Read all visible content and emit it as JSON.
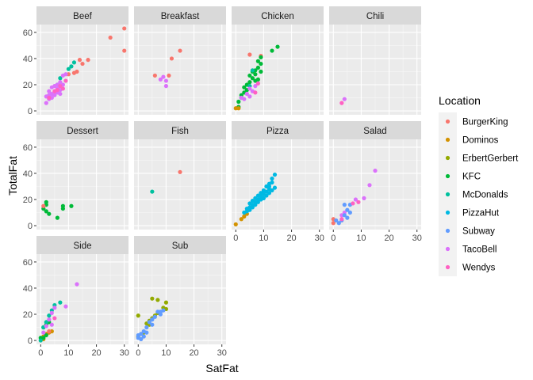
{
  "chart_data": {
    "type": "scatter",
    "facet_by": "Category",
    "xlabel": "SatFat",
    "ylabel": "TotalFat",
    "xlim": [
      -1.5,
      31.5
    ],
    "ylim": [
      -3,
      66
    ],
    "x_ticks": [
      0,
      10,
      20,
      30
    ],
    "y_ticks": [
      0,
      20,
      40,
      60
    ],
    "grid": true,
    "legend": {
      "title": "Location",
      "position": "right",
      "entries": [
        {
          "name": "BurgerKing",
          "color": "#F8766D"
        },
        {
          "name": "Dominos",
          "color": "#D39200"
        },
        {
          "name": "ErbertGerbert",
          "color": "#93AA00"
        },
        {
          "name": "KFC",
          "color": "#00BA38"
        },
        {
          "name": "McDonalds",
          "color": "#00C19F"
        },
        {
          "name": "PizzaHut",
          "color": "#00B9E3"
        },
        {
          "name": "Subway",
          "color": "#619CFF"
        },
        {
          "name": "TacoBell",
          "color": "#DB72FB"
        },
        {
          "name": "Wendys",
          "color": "#FF61C3"
        }
      ]
    },
    "panels": [
      {
        "name": "Beef",
        "points": [
          [
            30,
            63,
            "BurgerKing"
          ],
          [
            25,
            56,
            "BurgerKing"
          ],
          [
            30,
            46,
            "BurgerKing"
          ],
          [
            17,
            39,
            "BurgerKing"
          ],
          [
            14,
            39,
            "BurgerKing"
          ],
          [
            15,
            36,
            "BurgerKing"
          ],
          [
            13,
            30,
            "BurgerKing"
          ],
          [
            10,
            28,
            "BurgerKing"
          ],
          [
            12,
            29,
            "BurgerKing"
          ],
          [
            12,
            37,
            "McDonalds"
          ],
          [
            11,
            34,
            "McDonalds"
          ],
          [
            10,
            32,
            "McDonalds"
          ],
          [
            7,
            25,
            "McDonalds"
          ],
          [
            6,
            20,
            "McDonalds"
          ],
          [
            9,
            28,
            "TacoBell"
          ],
          [
            8,
            27,
            "TacoBell"
          ],
          [
            7,
            22,
            "TacoBell"
          ],
          [
            6,
            20,
            "TacoBell"
          ],
          [
            5,
            19,
            "TacoBell"
          ],
          [
            5,
            15,
            "TacoBell"
          ],
          [
            4,
            18,
            "TacoBell"
          ],
          [
            4,
            13,
            "TacoBell"
          ],
          [
            3,
            12,
            "TacoBell"
          ],
          [
            3,
            9,
            "TacoBell"
          ],
          [
            2,
            6,
            "TacoBell"
          ],
          [
            4,
            10,
            "TacoBell"
          ],
          [
            5,
            12,
            "TacoBell"
          ],
          [
            6,
            14,
            "TacoBell"
          ],
          [
            7,
            16,
            "TacoBell"
          ],
          [
            8,
            20,
            "TacoBell"
          ],
          [
            3,
            15,
            "TacoBell"
          ],
          [
            2,
            11,
            "TacoBell"
          ],
          [
            6,
            17,
            "TacoBell"
          ],
          [
            7,
            13,
            "TacoBell"
          ],
          [
            6,
            16,
            "Wendys"
          ],
          [
            7,
            19,
            "Wendys"
          ],
          [
            5,
            15,
            "Wendys"
          ],
          [
            8,
            17,
            "Wendys"
          ],
          [
            9,
            23,
            "Wendys"
          ],
          [
            3,
            10,
            "Wendys"
          ]
        ]
      },
      {
        "name": "Breakfast",
        "points": [
          [
            15,
            46,
            "BurgerKing"
          ],
          [
            12,
            40,
            "BurgerKing"
          ],
          [
            6,
            27,
            "BurgerKing"
          ],
          [
            11,
            27,
            "BurgerKing"
          ],
          [
            9,
            26,
            "TacoBell"
          ],
          [
            8,
            24,
            "TacoBell"
          ],
          [
            10,
            23,
            "TacoBell"
          ],
          [
            10,
            19,
            "TacoBell"
          ]
        ]
      },
      {
        "name": "Chicken",
        "points": [
          [
            5,
            43,
            "BurgerKing"
          ],
          [
            9,
            42,
            "BurgerKing"
          ],
          [
            15,
            49,
            "KFC"
          ],
          [
            13,
            46,
            "KFC"
          ],
          [
            9,
            41,
            "KFC"
          ],
          [
            8,
            38,
            "KFC"
          ],
          [
            9,
            36,
            "KFC"
          ],
          [
            8,
            33,
            "KFC"
          ],
          [
            6,
            30,
            "KFC"
          ],
          [
            7,
            28,
            "KFC"
          ],
          [
            5,
            27,
            "KFC"
          ],
          [
            6,
            25,
            "KFC"
          ],
          [
            7,
            23,
            "KFC"
          ],
          [
            5,
            22,
            "KFC"
          ],
          [
            4,
            20,
            "KFC"
          ],
          [
            3,
            18,
            "KFC"
          ],
          [
            4,
            16,
            "KFC"
          ],
          [
            2,
            12,
            "KFC"
          ],
          [
            3,
            14,
            "KFC"
          ],
          [
            2,
            10,
            "KFC"
          ],
          [
            1,
            7,
            "KFC"
          ],
          [
            1,
            3,
            "KFC"
          ],
          [
            8,
            24,
            "KFC"
          ],
          [
            7,
            31,
            "KFC"
          ],
          [
            9,
            30,
            "KFC"
          ],
          [
            0,
            2,
            "Dominos"
          ],
          [
            1,
            2,
            "Dominos"
          ],
          [
            6,
            31,
            "McDonalds"
          ],
          [
            5,
            19,
            "McDonalds"
          ],
          [
            7,
            19,
            "TacoBell"
          ],
          [
            5,
            17,
            "TacoBell"
          ],
          [
            6,
            15,
            "TacoBell"
          ],
          [
            4,
            13,
            "TacoBell"
          ],
          [
            5,
            11,
            "TacoBell"
          ],
          [
            3,
            9,
            "TacoBell"
          ],
          [
            2,
            10,
            "TacoBell"
          ],
          [
            8,
            21,
            "Wendys"
          ],
          [
            7,
            14,
            "Wendys"
          ]
        ]
      },
      {
        "name": "Chili",
        "points": [
          [
            4,
            9,
            "TacoBell"
          ],
          [
            3,
            6,
            "Wendys"
          ]
        ]
      },
      {
        "name": "Dessert",
        "points": [
          [
            2,
            16,
            "KFC"
          ],
          [
            2,
            18,
            "KFC"
          ],
          [
            1,
            13,
            "KFC"
          ],
          [
            2,
            11,
            "KFC"
          ],
          [
            6,
            6,
            "KFC"
          ],
          [
            8,
            13,
            "KFC"
          ],
          [
            8,
            15,
            "KFC"
          ],
          [
            11,
            15,
            "KFC"
          ],
          [
            3,
            9,
            "KFC"
          ],
          [
            1,
            15,
            "BurgerKing"
          ]
        ]
      },
      {
        "name": "Fish",
        "points": [
          [
            15,
            41,
            "BurgerKing"
          ],
          [
            5,
            26,
            "McDonalds"
          ]
        ]
      },
      {
        "name": "Pizza",
        "points": [
          [
            0,
            1,
            "Dominos"
          ],
          [
            2,
            5,
            "Dominos"
          ],
          [
            3,
            7,
            "Dominos"
          ],
          [
            4,
            9,
            "Dominos"
          ],
          [
            14,
            39,
            "PizzaHut"
          ],
          [
            13,
            36,
            "PizzaHut"
          ],
          [
            12,
            32,
            "PizzaHut"
          ],
          [
            11,
            30,
            "PizzaHut"
          ],
          [
            12,
            28,
            "PizzaHut"
          ],
          [
            10,
            27,
            "PizzaHut"
          ],
          [
            11,
            26,
            "PizzaHut"
          ],
          [
            9,
            25,
            "PizzaHut"
          ],
          [
            10,
            24,
            "PizzaHut"
          ],
          [
            8,
            23,
            "PizzaHut"
          ],
          [
            9,
            22,
            "PizzaHut"
          ],
          [
            7,
            21,
            "PizzaHut"
          ],
          [
            8,
            20,
            "PizzaHut"
          ],
          [
            6,
            19,
            "PizzaHut"
          ],
          [
            7,
            18,
            "PizzaHut"
          ],
          [
            5,
            17,
            "PizzaHut"
          ],
          [
            6,
            16,
            "PizzaHut"
          ],
          [
            5,
            14,
            "PizzaHut"
          ],
          [
            4,
            13,
            "PizzaHut"
          ],
          [
            4,
            11,
            "PizzaHut"
          ],
          [
            3,
            10,
            "PizzaHut"
          ],
          [
            13,
            27,
            "PizzaHut"
          ],
          [
            12,
            25,
            "PizzaHut"
          ],
          [
            14,
            29,
            "PizzaHut"
          ],
          [
            11,
            23,
            "PizzaHut"
          ],
          [
            10,
            21,
            "PizzaHut"
          ],
          [
            9,
            20,
            "PizzaHut"
          ],
          [
            8,
            18,
            "PizzaHut"
          ],
          [
            7,
            16,
            "PizzaHut"
          ],
          [
            6,
            14,
            "PizzaHut"
          ],
          [
            5,
            12,
            "PizzaHut"
          ],
          [
            9,
            24,
            "PizzaHut"
          ],
          [
            10,
            26,
            "PizzaHut"
          ],
          [
            12,
            30,
            "PizzaHut"
          ],
          [
            13,
            33,
            "PizzaHut"
          ]
        ]
      },
      {
        "name": "Salad",
        "points": [
          [
            0,
            5,
            "BurgerKing"
          ],
          [
            0,
            2,
            "BurgerKing"
          ],
          [
            15,
            42,
            "TacoBell"
          ],
          [
            13,
            31,
            "TacoBell"
          ],
          [
            11,
            21,
            "TacoBell"
          ],
          [
            8,
            20,
            "TacoBell"
          ],
          [
            4,
            10,
            "TacoBell"
          ],
          [
            3,
            8,
            "TacoBell"
          ],
          [
            4,
            16,
            "Subway"
          ],
          [
            6,
            16,
            "Subway"
          ],
          [
            5,
            12,
            "Subway"
          ],
          [
            6,
            10,
            "Subway"
          ],
          [
            4,
            8,
            "Subway"
          ],
          [
            5,
            6,
            "Subway"
          ],
          [
            3,
            4,
            "Subway"
          ],
          [
            1,
            4,
            "Subway"
          ],
          [
            2,
            2,
            "Subway"
          ],
          [
            9,
            18,
            "Wendys"
          ],
          [
            7,
            17,
            "Wendys"
          ],
          [
            3,
            5,
            "Wendys"
          ]
        ]
      },
      {
        "name": "Side",
        "points": [
          [
            1,
            3,
            "Dominos"
          ],
          [
            2,
            5,
            "Dominos"
          ],
          [
            3,
            6,
            "Dominos"
          ],
          [
            4,
            7,
            "Dominos"
          ],
          [
            1,
            1,
            "Dominos"
          ],
          [
            1,
            10,
            "KFC"
          ],
          [
            2,
            12,
            "KFC"
          ],
          [
            3,
            14,
            "KFC"
          ],
          [
            0,
            2,
            "KFC"
          ],
          [
            1,
            2,
            "KFC"
          ],
          [
            2,
            4,
            "KFC"
          ],
          [
            7,
            29,
            "McDonalds"
          ],
          [
            5,
            27,
            "McDonalds"
          ],
          [
            4,
            23,
            "McDonalds"
          ],
          [
            3,
            19,
            "McDonalds"
          ],
          [
            2,
            14,
            "McDonalds"
          ],
          [
            1,
            10,
            "McDonalds"
          ],
          [
            0,
            0,
            "McDonalds"
          ],
          [
            13,
            43,
            "TacoBell"
          ],
          [
            9,
            26,
            "TacoBell"
          ],
          [
            5,
            25,
            "TacoBell"
          ],
          [
            4,
            21,
            "TacoBell"
          ],
          [
            3,
            16,
            "TacoBell"
          ],
          [
            2,
            11,
            "TacoBell"
          ],
          [
            1,
            6,
            "TacoBell"
          ],
          [
            4,
            12,
            "TacoBell"
          ],
          [
            3,
            7,
            "BurgerKing"
          ],
          [
            5,
            17,
            "Wendys"
          ]
        ]
      },
      {
        "name": "Sub",
        "points": [
          [
            10,
            29,
            "ErbertGerbert"
          ],
          [
            9,
            25,
            "ErbertGerbert"
          ],
          [
            10,
            24,
            "ErbertGerbert"
          ],
          [
            5,
            32,
            "ErbertGerbert"
          ],
          [
            6,
            19,
            "ErbertGerbert"
          ],
          [
            4,
            15,
            "ErbertGerbert"
          ],
          [
            5,
            17,
            "ErbertGerbert"
          ],
          [
            3,
            13,
            "ErbertGerbert"
          ],
          [
            7,
            21,
            "ErbertGerbert"
          ],
          [
            0,
            19,
            "ErbertGerbert"
          ],
          [
            2,
            6,
            "ErbertGerbert"
          ],
          [
            0,
            3,
            "ErbertGerbert"
          ],
          [
            4,
            12,
            "ErbertGerbert"
          ],
          [
            7,
            31,
            "ErbertGerbert"
          ],
          [
            8,
            22,
            "Subway"
          ],
          [
            7,
            22,
            "Subway"
          ],
          [
            6,
            18,
            "Subway"
          ],
          [
            5,
            16,
            "Subway"
          ],
          [
            4,
            14,
            "Subway"
          ],
          [
            3,
            10,
            "Subway"
          ],
          [
            2,
            7,
            "Subway"
          ],
          [
            1,
            5,
            "Subway"
          ],
          [
            0,
            4,
            "Subway"
          ],
          [
            0,
            2,
            "Subway"
          ],
          [
            2,
            3,
            "Subway"
          ],
          [
            1,
            1,
            "Subway"
          ],
          [
            3,
            6,
            "Subway"
          ],
          [
            5,
            12,
            "Subway"
          ],
          [
            9,
            23,
            "Subway"
          ],
          [
            8,
            20,
            "Subway"
          ]
        ]
      }
    ]
  }
}
